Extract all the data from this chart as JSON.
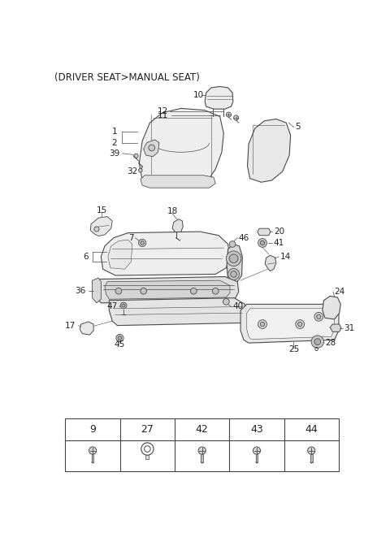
{
  "title": "(DRIVER SEAT>MANUAL SEAT)",
  "title_fontsize": 8.5,
  "bg_color": "#ffffff",
  "lc": "#4a4a4a",
  "fc_light": "#f2f2f2",
  "fc_mid": "#e8e8e8",
  "fc_dark": "#d8d8d8",
  "lw_main": 0.8,
  "lw_thin": 0.5
}
